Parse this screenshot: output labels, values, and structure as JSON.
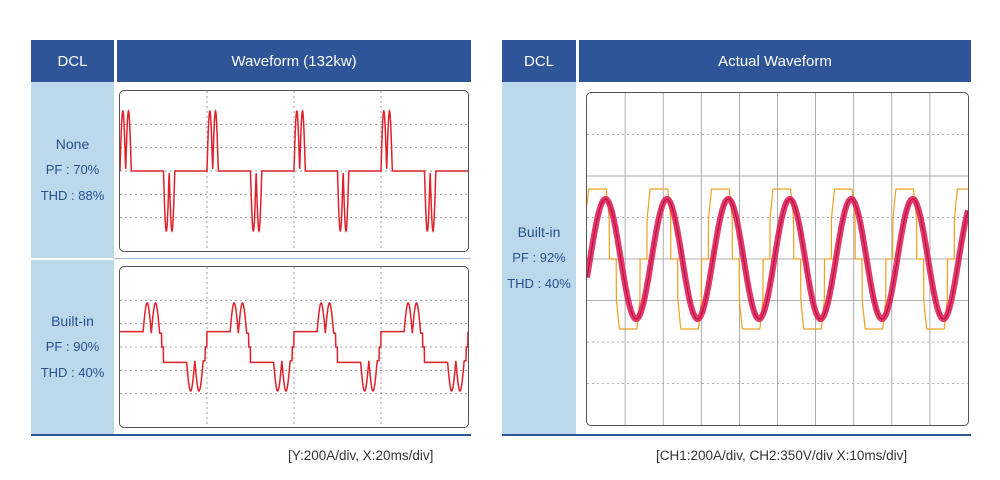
{
  "left_panel": {
    "dcl_header": "DCL",
    "title": "Waveform (132kw)",
    "rows": [
      {
        "name": "None",
        "pf": "PF : 70%",
        "thd": "THD : 88%"
      },
      {
        "name": "Built-in",
        "pf": "PF : 90%",
        "thd": "THD : 40%"
      }
    ],
    "footnote": "[Y:200A/div, X:20ms/div]"
  },
  "right_panel": {
    "dcl_header": "DCL",
    "title": "Actual Waveform",
    "row": {
      "name": "Built-in",
      "pf": "PF : 92%",
      "thd": "THD : 40%"
    },
    "footnote": "[CH1:200A/div,  CH2:350V/div  X:10ms/div]"
  },
  "chart_data": [
    {
      "type": "line",
      "name": "None",
      "series": [
        {
          "color": "#e0202a"
        }
      ],
      "x_divisions": 4,
      "y_divisions": 5,
      "cycles": 4,
      "grid": true
    },
    {
      "type": "line",
      "name": "Built-in",
      "series": [
        {
          "color": "#e0202a"
        }
      ],
      "x_divisions": 4,
      "y_divisions": 5,
      "cycles": 4,
      "grid": true
    },
    {
      "type": "line",
      "name": "Actual Waveform",
      "series": [
        {
          "name": "CH1",
          "color": "#e0205a"
        },
        {
          "name": "CH2",
          "color": "#f0a020"
        }
      ],
      "x_divisions": 10,
      "y_divisions": 8,
      "cycles": 6.2,
      "grid": true
    }
  ]
}
